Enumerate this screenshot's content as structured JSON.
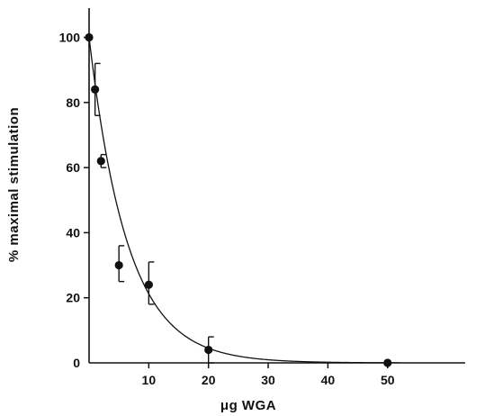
{
  "chart_data": {
    "type": "scatter",
    "title": "",
    "xlabel": "μg WGA",
    "ylabel": "% maximal stimulation",
    "xlim": [
      0,
      63
    ],
    "ylim": [
      0,
      109
    ],
    "x_ticks": [
      10,
      20,
      30,
      40,
      50
    ],
    "x_tick_labels": [
      "10",
      "20",
      "30",
      "40",
      "50"
    ],
    "y_ticks": [
      0,
      20,
      40,
      60,
      80,
      100
    ],
    "y_tick_labels": [
      "0",
      "20",
      "40",
      "60",
      "80",
      "100"
    ],
    "grid": false,
    "series": [
      {
        "marker": "filled-circle",
        "points": [
          {
            "x": 0,
            "y": 100
          },
          {
            "x": 1,
            "y": 84,
            "err_low": 76,
            "err_high": 92
          },
          {
            "x": 2,
            "y": 62,
            "err_low": 60,
            "err_high": 64
          },
          {
            "x": 5,
            "y": 30,
            "err_low": 25,
            "err_high": 36
          },
          {
            "x": 10,
            "y": 24,
            "err_low": 18,
            "err_high": 31
          },
          {
            "x": 20,
            "y": 4,
            "err_low": 0,
            "err_high": 8
          },
          {
            "x": 50,
            "y": 0
          }
        ]
      }
    ],
    "fit_curve": {
      "function": "exponential-decay",
      "y0": 100,
      "rate": 0.155
    }
  }
}
